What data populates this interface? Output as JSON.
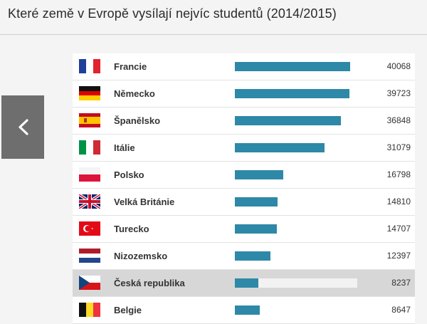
{
  "header": {
    "title": "Které země v Evropě vysílají nejvíc studentů (2014/2015)"
  },
  "nav": {
    "prev_icon": "chevron-left-icon"
  },
  "chart_data": {
    "type": "bar",
    "orientation": "horizontal",
    "title": "Které země v Evropě vysílají nejvíc studentů (2014/2015)",
    "categories": [
      "Francie",
      "Německo",
      "Španělsko",
      "Itálie",
      "Polsko",
      "Velká Británie",
      "Turecko",
      "Nizozemsko",
      "Česká republika",
      "Belgie"
    ],
    "values": [
      40068,
      39723,
      36848,
      31079,
      16798,
      14810,
      14707,
      12397,
      8237,
      8647
    ],
    "value_labels": [
      "40068",
      "39723",
      "36848",
      "31079",
      "16798",
      "14810",
      "14707",
      "12397",
      "8237",
      "8647"
    ],
    "flags": [
      "flag-france",
      "flag-germany",
      "flag-spain",
      "flag-italy",
      "flag-poland",
      "flag-uk",
      "flag-turkey",
      "flag-netherlands",
      "flag-czech",
      "flag-belgium"
    ],
    "highlighted": "Česká republika",
    "xlim": [
      0,
      40068
    ],
    "bar_color": "#2e88a7",
    "track_color": "#ececec",
    "highlight_color": "#d7d7d7"
  }
}
